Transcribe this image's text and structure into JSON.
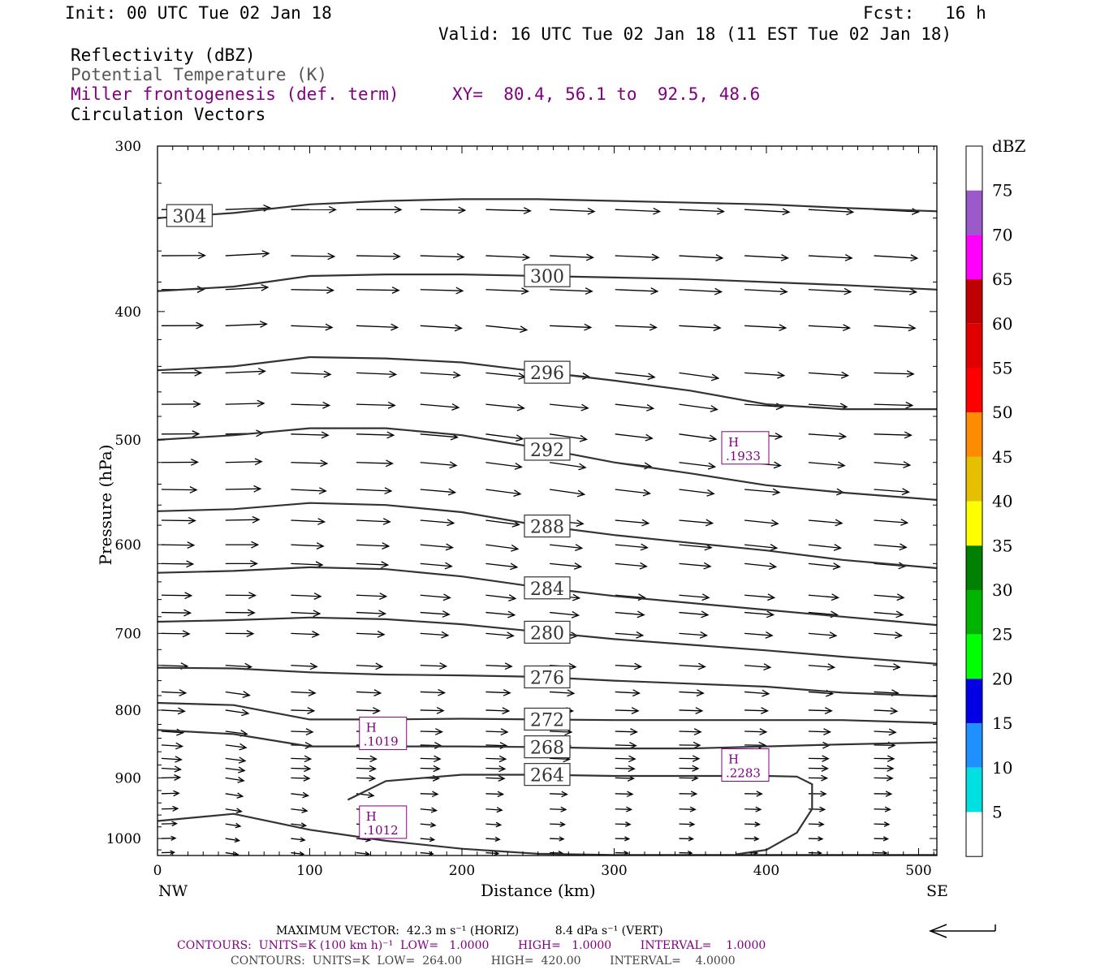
{
  "header": {
    "init": "Init: 00 UTC Tue 02 Jan 18",
    "fcst": "Fcst:   16 h",
    "valid": "Valid: 16 UTC Tue 02 Jan 18 (11 EST Tue 02 Jan 18)"
  },
  "fields": {
    "reflectivity": "Reflectivity (dBZ)",
    "theta": "Potential Temperature (K)",
    "miller": "Miller frontogenesis (def. term)",
    "xy": "XY=  80.4, 56.1 to  92.5, 48.6",
    "circ": "Circulation Vectors"
  },
  "colors": {
    "theta_line": "#333333",
    "miller_label": "#800080",
    "frame": "#000000"
  },
  "chart_data": {
    "type": "line",
    "xlabel": "Distance (km)",
    "ylabel": "Pressure (hPa)",
    "x_range": [
      0,
      512
    ],
    "y_range": [
      300,
      1030
    ],
    "y_scale": "log",
    "x_ticks": [
      "0",
      "100",
      "200",
      "300",
      "400",
      "500"
    ],
    "x_tick_values": [
      0,
      100,
      200,
      300,
      400,
      500
    ],
    "y_ticks": [
      "300",
      "400",
      "500",
      "600",
      "700",
      "800",
      "900",
      "1000"
    ],
    "y_tick_values": [
      300,
      400,
      500,
      600,
      700,
      800,
      900,
      1000
    ],
    "left_end_label": "NW",
    "right_end_label": "SE",
    "theta_contours": [
      {
        "label": "304",
        "x": [
          0,
          50,
          100,
          150,
          200,
          250,
          300,
          350,
          400,
          450,
          512
        ],
        "y": [
          340,
          337,
          332,
          330,
          329,
          329,
          330,
          331,
          332,
          334,
          336
        ]
      },
      {
        "label": "300",
        "x": [
          0,
          50,
          100,
          150,
          200,
          250,
          300,
          350,
          400,
          450,
          512
        ],
        "y": [
          386,
          383,
          376,
          375,
          375,
          376,
          377,
          378,
          380,
          382,
          385
        ]
      },
      {
        "label": "296",
        "x": [
          0,
          50,
          100,
          150,
          200,
          250,
          300,
          350,
          400,
          450,
          512
        ],
        "y": [
          443,
          440,
          433,
          434,
          437,
          444,
          451,
          459,
          470,
          474,
          474
        ]
      },
      {
        "label": "292",
        "x": [
          0,
          50,
          100,
          150,
          200,
          250,
          300,
          350,
          400,
          450,
          512
        ],
        "y": [
          500,
          496,
          490,
          490,
          496,
          507,
          520,
          530,
          541,
          548,
          555
        ]
      },
      {
        "label": "288",
        "x": [
          0,
          50,
          100,
          150,
          200,
          250,
          300,
          350,
          400,
          450,
          512
        ],
        "y": [
          566,
          564,
          558,
          560,
          567,
          580,
          590,
          598,
          606,
          616,
          625
        ]
      },
      {
        "label": "284",
        "x": [
          0,
          50,
          100,
          150,
          200,
          250,
          300,
          350,
          400,
          450,
          512
        ],
        "y": [
          630,
          628,
          624,
          626,
          634,
          646,
          656,
          664,
          672,
          680,
          690
        ]
      },
      {
        "label": "280",
        "x": [
          0,
          50,
          100,
          150,
          200,
          250,
          300,
          350,
          400,
          450,
          512
        ],
        "y": [
          686,
          684,
          681,
          683,
          689,
          698,
          707,
          714,
          721,
          729,
          738
        ]
      },
      {
        "label": "276",
        "x": [
          0,
          50,
          100,
          150,
          200,
          250,
          300,
          350,
          400,
          450,
          512
        ],
        "y": [
          743,
          744,
          749,
          752,
          753,
          755,
          760,
          764,
          768,
          776,
          781
        ]
      },
      {
        "label": "272",
        "x": [
          0,
          50,
          100,
          150,
          200,
          250,
          300,
          350,
          400,
          450,
          512
        ],
        "y": [
          790,
          793,
          813,
          813,
          812,
          813,
          814,
          814,
          814,
          814,
          818
        ]
      },
      {
        "label": "268",
        "x": [
          0,
          50,
          100,
          150,
          200,
          250,
          300,
          350,
          400,
          450,
          512
        ],
        "y": [
          828,
          834,
          852,
          852,
          852,
          853,
          855,
          855,
          852,
          849,
          846
        ]
      },
      {
        "label": "264",
        "x": [
          125,
          150,
          200,
          250,
          300,
          350,
          400,
          420,
          430,
          430,
          420,
          400,
          380
        ],
        "y": [
          935,
          905,
          895,
          895,
          897,
          897,
          897,
          898,
          910,
          950,
          990,
          1020,
          1028
        ]
      },
      {
        "label": "",
        "x": [
          0,
          50,
          100,
          150,
          200,
          250,
          300,
          350,
          400,
          450,
          512
        ],
        "y": [
          970,
          958,
          985,
          1004,
          1018,
          1027,
          1029,
          1029,
          1029,
          1029,
          1029
        ]
      }
    ],
    "miller_maxima": [
      {
        "label": "H",
        "value": ".1933",
        "x": 384,
        "y": 507
      },
      {
        "label": "H",
        "value": ".1019",
        "x": 146,
        "y": 833
      },
      {
        "label": "H",
        "value": ".2283",
        "x": 384,
        "y": 880
      },
      {
        "label": "H",
        "value": ".1012",
        "x": 146,
        "y": 972
      }
    ],
    "colorbar": {
      "unit": "dBZ",
      "labels": [
        "75",
        "70",
        "65",
        "60",
        "55",
        "50",
        "45",
        "40",
        "35",
        "30",
        "25",
        "20",
        "15",
        "10",
        "5"
      ],
      "colors": [
        "#ffffff",
        "#9b59c9",
        "#ff00ff",
        "#c00000",
        "#e00000",
        "#ff0000",
        "#ff8c00",
        "#e6bf00",
        "#ffff00",
        "#008000",
        "#00b400",
        "#00ff00",
        "#0000e6",
        "#1e90ff",
        "#00e0e0",
        "#ffffff"
      ]
    }
  },
  "footer": {
    "maxvec": "MAXIMUM VECTOR:  42.3 m s⁻¹ (HORIZ)          8.4 dPa s⁻¹ (VERT)",
    "contours1": "CONTOURS:  UNITS=K (100 km h)⁻¹  LOW=   1.0000        HIGH=   1.0000        INTERVAL=    1.0000",
    "contours2": "CONTOURS:  UNITS=K  LOW=  264.00        HIGH=  420.00        INTERVAL=    4.0000"
  }
}
